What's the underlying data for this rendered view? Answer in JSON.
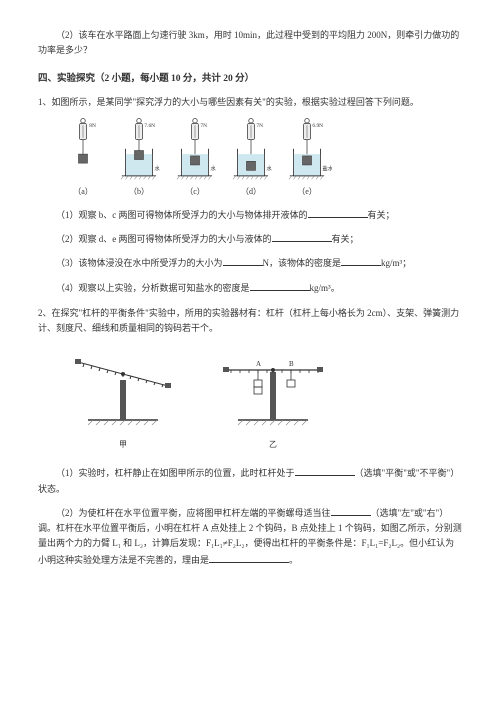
{
  "q_prev": {
    "text": "（2）该车在水平路面上匀速行驶 3km，用时 10min，此过程中受到的平均阻力 200N，则牵引力做功的功率是多少？"
  },
  "section4": {
    "title": "四、实验探究（2 小题，每小题 10 分，共计 20 分）"
  },
  "q1": {
    "intro": "1、如图所示，是某同学\"探究浮力的大小与哪些因素有关\"的实验，根据实验过程回答下列问题。",
    "beakers": [
      {
        "label": "（a）",
        "reading": "8N",
        "liquid": "",
        "submerged": "none"
      },
      {
        "label": "（b）",
        "reading": "7.6N",
        "liquid": "水",
        "submerged": "half"
      },
      {
        "label": "（c）",
        "reading": "7N",
        "liquid": "水",
        "submerged": "full"
      },
      {
        "label": "（d）",
        "reading": "7N",
        "liquid": "水",
        "submerged": "deep"
      },
      {
        "label": "（e）",
        "reading": "6.9N",
        "liquid": "盐水",
        "submerged": "full"
      }
    ],
    "sub1_a": "（1）观察 b、c 两图可得物体所受浮力的大小与物体排开液体的",
    "sub1_b": "有关；",
    "sub2_a": "（2）观察 d、e 两图可得物体所受浮力的大小与液体的",
    "sub2_b": "有关；",
    "sub3_a": "（3）该物体浸没在水中所受浮力的大小为",
    "sub3_b": "N，该物体的密度是",
    "sub3_c": "kg/m³；",
    "sub4_a": "（4）观察以上实验，分析数据可知盐水的密度是",
    "sub4_b": "kg/m³。"
  },
  "q2": {
    "intro": "2、在探究\"杠杆的平衡条件\"实验中，所用的实验器材有：杠杆（杠杆上每小格长为 2cm）、支架、弹簧测力计、刻度尺、细线和质量相同的钩码若干个。",
    "fig_left": "甲",
    "fig_right": "乙",
    "sub1_a": "（1）实验时，杠杆静止在如图甲所示的位置，此时杠杆处于",
    "sub1_b": "（选填\"平衡\"或\"不平衡\"）状态。",
    "sub2_a": "（2）为使杠杆在水平位置平衡，应将图甲杠杆左端的平衡螺母适当往",
    "sub2_b": "（选填\"左\"或\"右\"）调。杠杆在水平位置平衡后，小明在杠杆 A 点处挂上 2 个钩码，B 点处挂上 1 个钩码，如图乙所示，分别测量出两个力的力臂 L₁ 和 L₂，计算后发现：F₁L₁≠F₂L₂，便得出杠杆的平衡条件是：F₁L₁=F₂L₂。但小红认为小明这种实验处理方法是不完善的，理由是",
    "sub2_c": "。"
  },
  "colors": {
    "text": "#333333",
    "line": "#333333",
    "liquid": "#cfe7ee",
    "block": "#666666",
    "hatch": "#888888"
  }
}
